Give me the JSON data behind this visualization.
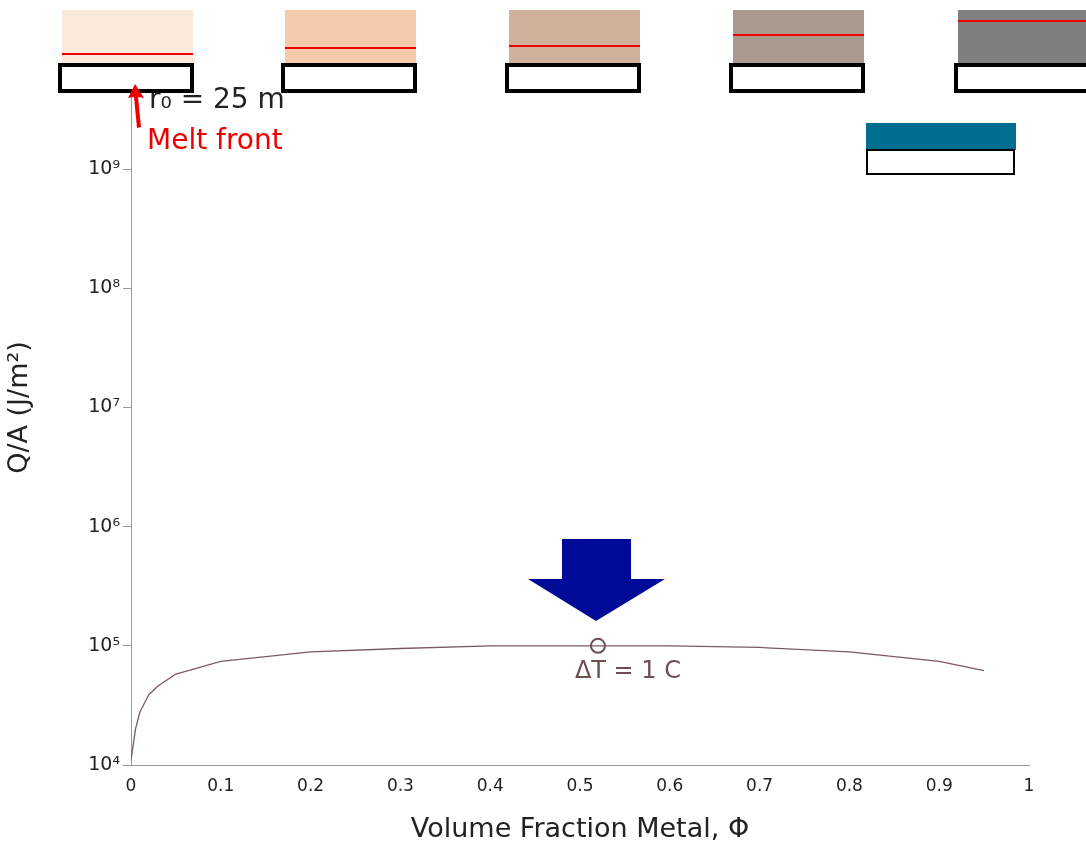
{
  "chart_data": {
    "type": "line",
    "xlabel": "Volume Fraction Metal, Φ",
    "ylabel": "Q/A (J/m²)",
    "log": "y",
    "grid": false,
    "xlim": [
      0,
      1
    ],
    "xticks": [
      0,
      0.1,
      0.2,
      0.3,
      0.4,
      0.5,
      0.6,
      0.7,
      0.8,
      0.9,
      1
    ],
    "ylim": [
      10000,
      10000000000
    ],
    "yticks": [
      {
        "value": 10000,
        "label": "10⁴"
      },
      {
        "value": 100000,
        "label": "10⁵"
      },
      {
        "value": 1000000,
        "label": "10⁶"
      },
      {
        "value": 10000000,
        "label": "10⁷"
      },
      {
        "value": 100000000,
        "label": "10⁸"
      },
      {
        "value": 1000000000,
        "label": "10⁹"
      },
      {
        "value": 10000000000,
        "label": null
      }
    ],
    "series": [
      {
        "color": "#7a5a60",
        "marker": "none",
        "x": [
          0,
          0.005,
          0.01,
          0.02,
          0.03,
          0.05,
          0.1,
          0.2,
          0.3,
          0.4,
          0.52,
          0.6,
          0.7,
          0.8,
          0.9,
          0.95
        ],
        "values": [
          11000,
          20000,
          28000,
          39000,
          46000,
          58000,
          74000,
          89000,
          95000,
          100000,
          100000,
          100000,
          97000,
          89000,
          74000,
          62000
        ]
      },
      {
        "type": "scatter",
        "color": "#6b5050",
        "marker": "circle",
        "x": [
          0.52
        ],
        "values": [
          100000
        ]
      }
    ],
    "annotations": [
      "r₀ = 25 m",
      "Melt front",
      {
        "text": "ΔT = 1 C",
        "x": 0.52,
        "y": 100000
      }
    ]
  }
}
